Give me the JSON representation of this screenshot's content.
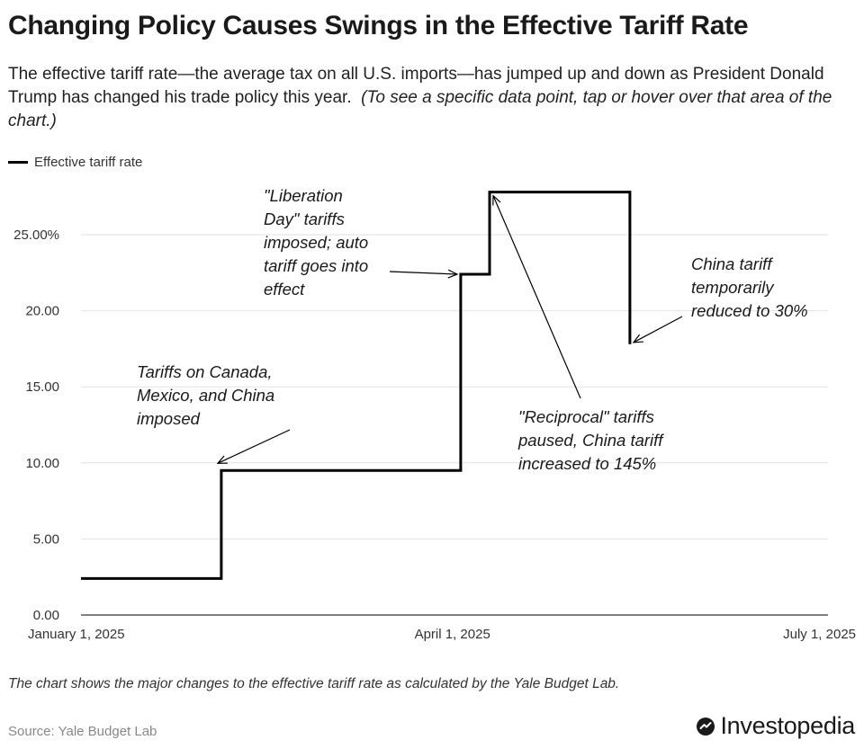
{
  "header": {
    "title": "Changing Policy Causes Swings in the Effective Tariff Rate",
    "subtitle": "The effective tariff rate—the average tax on all U.S. imports—has jumped up and down as President Donald Trump has changed his trade policy this year.",
    "hint": "(To see a specific data point, tap or hover over that area of the chart.)"
  },
  "legend": {
    "label": "Effective tariff rate",
    "color": "#000000"
  },
  "chart_data": {
    "type": "line",
    "step": true,
    "title": "Changing Policy Causes Swings in the Effective Tariff Rate",
    "xlabel": "",
    "ylabel": "",
    "series": [
      {
        "name": "Effective tariff rate",
        "color": "#000000",
        "points": [
          {
            "date": "2025-01-01",
            "value": 2.4
          },
          {
            "date": "2025-02-04",
            "value": 9.5
          },
          {
            "date": "2025-04-03",
            "value": 22.4
          },
          {
            "date": "2025-04-10",
            "value": 27.8
          },
          {
            "date": "2025-05-14",
            "value": 17.8
          }
        ]
      }
    ],
    "step_end": "2025-05-14",
    "xlim": [
      "2025-01-01",
      "2025-07-01"
    ],
    "x_tick_dates": [
      "2025-01-01",
      "2025-04-01",
      "2025-07-01"
    ],
    "x_tick_labels": [
      "January 1, 2025",
      "April 1, 2025",
      "July 1, 2025"
    ],
    "ylim": [
      0,
      28
    ],
    "y_ticks": [
      0,
      5,
      10,
      15,
      20,
      25
    ],
    "y_tick_labels": [
      "0.00",
      "5.00",
      "10.00",
      "15.00",
      "20.00",
      "25.00%"
    ],
    "grid": true,
    "annotations": [
      {
        "id": "canada-mexico-china",
        "lines": [
          "Tariffs on Canada,",
          "Mexico, and China",
          "imposed"
        ],
        "date": "2025-02-04",
        "value": 9.5
      },
      {
        "id": "liberation-day",
        "lines": [
          "\"Liberation",
          "Day\" tariffs",
          "imposed; auto",
          "tariff goes into",
          "effect"
        ],
        "date": "2025-04-03",
        "value": 22.4
      },
      {
        "id": "reciprocal-paused",
        "lines": [
          "\"Reciprocal\" tariffs",
          "paused, China tariff",
          "increased to 145%"
        ],
        "date": "2025-04-10",
        "value": 27.8
      },
      {
        "id": "china-reduced",
        "lines": [
          "China tariff",
          "temporarily",
          "reduced to 30%"
        ],
        "date": "2025-05-14",
        "value": 17.8
      }
    ]
  },
  "footer": {
    "note": "The chart shows the major changes to the effective tariff rate as calculated by the Yale Budget Lab.",
    "source": "Source: Yale Budget Lab",
    "brand": "Investopedia",
    "brand_color": "#1a1a1a"
  }
}
